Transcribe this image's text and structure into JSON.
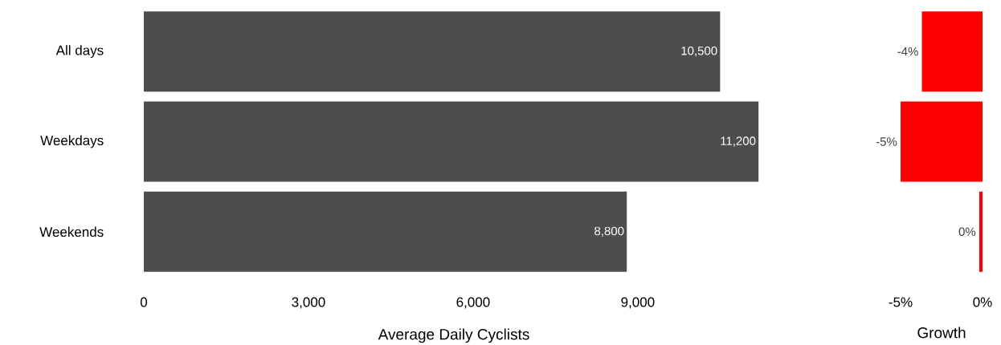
{
  "chart_data": [
    {
      "type": "bar",
      "orientation": "horizontal",
      "categories": [
        "All days",
        "Weekdays",
        "Weekends"
      ],
      "values": [
        10500,
        11200,
        8800
      ],
      "value_labels": [
        "10,500",
        "11,200",
        "8,800"
      ],
      "color": "#4d4d4d",
      "xlim": [
        0,
        11300
      ],
      "xticks": [
        0,
        {
          "value": 3000,
          "label": "3,000"
        },
        {
          "value": 6000,
          "label": "6,000"
        },
        {
          "value": 9000,
          "label": "9,000"
        }
      ],
      "xlabel": "Average Daily Cyclists"
    },
    {
      "type": "bar",
      "orientation": "horizontal",
      "values": [
        -3.7,
        -5,
        -0.2
      ],
      "value_labels": [
        "-4%",
        "-5%",
        "0%"
      ],
      "color": "#ff0000",
      "xlim": [
        -5,
        0
      ],
      "xticks": [
        {
          "value": -5,
          "label": "-5%"
        },
        {
          "value": 0,
          "label": "0%"
        }
      ],
      "xlabel": "Growth",
      "tick_labels": "x"
    }
  ]
}
